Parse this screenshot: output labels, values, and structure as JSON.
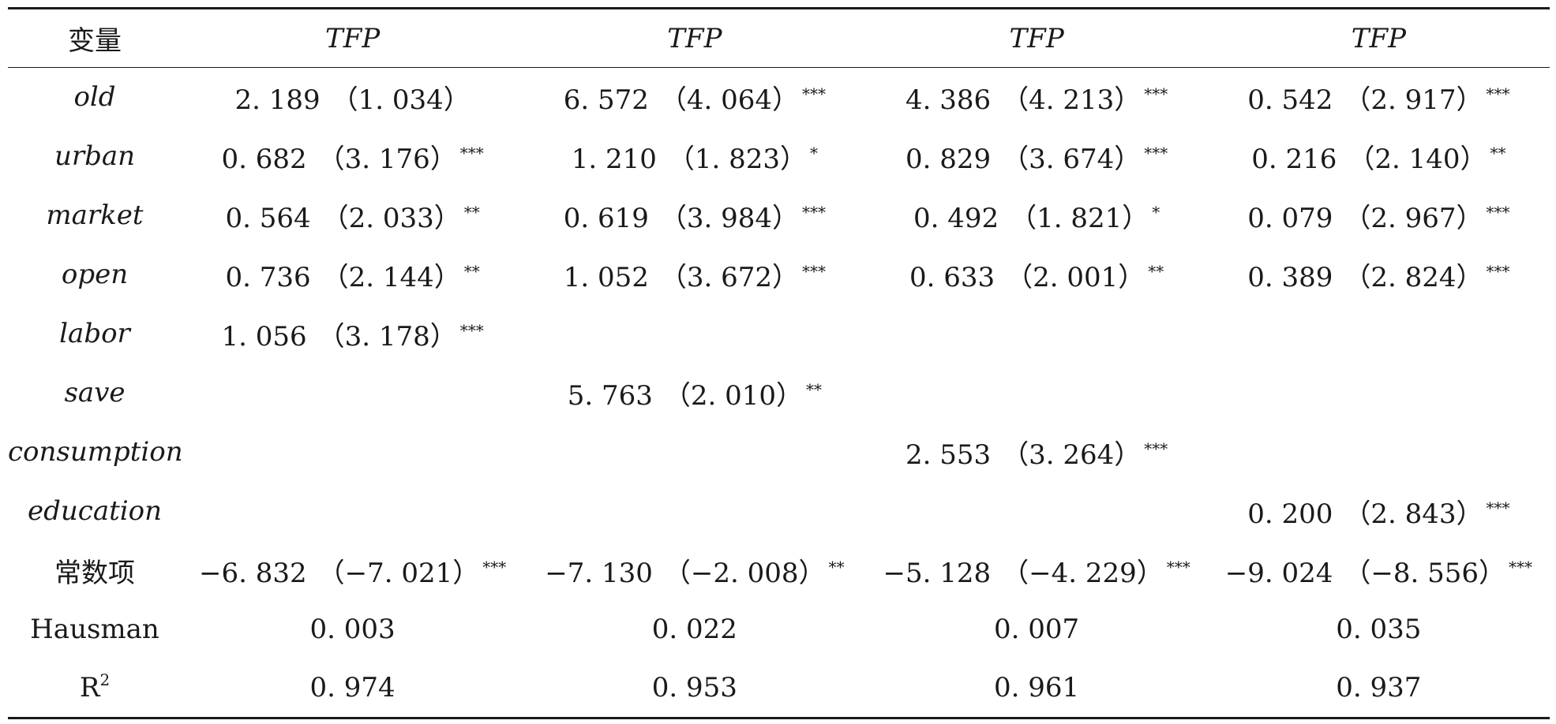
{
  "header": {
    "variable": "变量",
    "columns": [
      "TFP",
      "TFP",
      "TFP",
      "TFP"
    ]
  },
  "rows": [
    {
      "label": "old",
      "italic": true,
      "cells": [
        {
          "v": "2. 189",
          "p": "（1. 034）",
          "s": ""
        },
        {
          "v": "6. 572",
          "p": "（4. 064）",
          "s": "***"
        },
        {
          "v": "4. 386",
          "p": "（4. 213）",
          "s": "***"
        },
        {
          "v": "0. 542",
          "p": "（2. 917）",
          "s": "***"
        }
      ]
    },
    {
      "label": "urban",
      "italic": true,
      "cells": [
        {
          "v": "0. 682",
          "p": "（3. 176）",
          "s": "***"
        },
        {
          "v": "1. 210",
          "p": "（1. 823）",
          "s": "*"
        },
        {
          "v": "0. 829",
          "p": "（3. 674）",
          "s": "***"
        },
        {
          "v": "0. 216",
          "p": "（2. 140）",
          "s": "**"
        }
      ]
    },
    {
      "label": "market",
      "italic": true,
      "cells": [
        {
          "v": "0. 564",
          "p": "（2. 033）",
          "s": "**"
        },
        {
          "v": "0. 619",
          "p": "（3. 984）",
          "s": "***"
        },
        {
          "v": "0. 492",
          "p": "（1. 821）",
          "s": "*"
        },
        {
          "v": "0. 079",
          "p": "（2. 967）",
          "s": "***"
        }
      ]
    },
    {
      "label": "open",
      "italic": true,
      "cells": [
        {
          "v": "0. 736",
          "p": "（2. 144）",
          "s": "**"
        },
        {
          "v": "1. 052",
          "p": "（3. 672）",
          "s": "***"
        },
        {
          "v": "0. 633",
          "p": "（2. 001）",
          "s": "**"
        },
        {
          "v": "0. 389",
          "p": "（2. 824）",
          "s": "***"
        }
      ]
    },
    {
      "label": "labor",
      "italic": true,
      "cells": [
        {
          "v": "1. 056",
          "p": "（3. 178）",
          "s": "***"
        },
        {
          "v": "",
          "p": "",
          "s": ""
        },
        {
          "v": "",
          "p": "",
          "s": ""
        },
        {
          "v": "",
          "p": "",
          "s": ""
        }
      ]
    },
    {
      "label": "save",
      "italic": true,
      "cells": [
        {
          "v": "",
          "p": "",
          "s": ""
        },
        {
          "v": "5. 763",
          "p": "（2. 010）",
          "s": "**"
        },
        {
          "v": "",
          "p": "",
          "s": ""
        },
        {
          "v": "",
          "p": "",
          "s": ""
        }
      ]
    },
    {
      "label": "consumption",
      "italic": true,
      "cells": [
        {
          "v": "",
          "p": "",
          "s": ""
        },
        {
          "v": "",
          "p": "",
          "s": ""
        },
        {
          "v": "2. 553",
          "p": "（3. 264）",
          "s": "***"
        },
        {
          "v": "",
          "p": "",
          "s": ""
        }
      ]
    },
    {
      "label": "education",
      "italic": true,
      "cells": [
        {
          "v": "",
          "p": "",
          "s": ""
        },
        {
          "v": "",
          "p": "",
          "s": ""
        },
        {
          "v": "",
          "p": "",
          "s": ""
        },
        {
          "v": "0. 200",
          "p": "（2. 843）",
          "s": "***"
        }
      ]
    },
    {
      "label": "常数项",
      "italic": false,
      "cells": [
        {
          "v": "−6. 832",
          "p": "（−7. 021）",
          "s": "***"
        },
        {
          "v": "−7. 130",
          "p": "（−2. 008）",
          "s": "**"
        },
        {
          "v": "−5. 128",
          "p": "（−4. 229）",
          "s": "***"
        },
        {
          "v": "−9. 024",
          "p": "（−8. 556）",
          "s": "***"
        }
      ]
    },
    {
      "label": "Hausman",
      "italic": false,
      "cells": [
        {
          "v": "0. 003",
          "p": "",
          "s": ""
        },
        {
          "v": "0. 022",
          "p": "",
          "s": ""
        },
        {
          "v": "0. 007",
          "p": "",
          "s": ""
        },
        {
          "v": "0. 035",
          "p": "",
          "s": ""
        }
      ]
    },
    {
      "label": "R",
      "label_sup": "2",
      "italic": false,
      "cells": [
        {
          "v": "0. 974",
          "p": "",
          "s": ""
        },
        {
          "v": "0. 953",
          "p": "",
          "s": ""
        },
        {
          "v": "0. 961",
          "p": "",
          "s": ""
        },
        {
          "v": "0. 937",
          "p": "",
          "s": ""
        }
      ]
    }
  ]
}
